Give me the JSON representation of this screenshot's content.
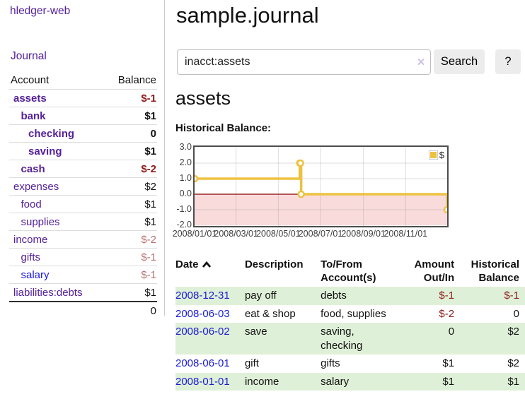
{
  "app": {
    "title": "hledger-web"
  },
  "sidebar": {
    "journal_link": "Journal",
    "table_headers": {
      "account": "Account",
      "balance": "Balance"
    },
    "accounts": [
      {
        "name": "assets",
        "balance": "$-1",
        "level": 0,
        "bold": true,
        "name_color": "purple",
        "balance_color": "neg-strong"
      },
      {
        "name": "bank",
        "balance": "$1",
        "level": 1,
        "bold": true,
        "name_color": "purple",
        "balance_color": "pos"
      },
      {
        "name": "checking",
        "balance": "0",
        "level": 2,
        "bold": true,
        "name_color": "purple",
        "balance_color": "pos"
      },
      {
        "name": "saving",
        "balance": "$1",
        "level": 2,
        "bold": true,
        "name_color": "purple",
        "balance_color": "pos"
      },
      {
        "name": "cash",
        "balance": "$-2",
        "level": 1,
        "bold": true,
        "name_color": "purple",
        "balance_color": "neg-strong"
      },
      {
        "name": "expenses",
        "balance": "$2",
        "level": 0,
        "bold": false,
        "name_color": "purple",
        "balance_color": "pos"
      },
      {
        "name": "food",
        "balance": "$1",
        "level": 1,
        "bold": false,
        "name_color": "purple",
        "balance_color": "pos"
      },
      {
        "name": "supplies",
        "balance": "$1",
        "level": 1,
        "bold": false,
        "name_color": "purple",
        "balance_color": "pos"
      },
      {
        "name": "income",
        "balance": "$-2",
        "level": 0,
        "bold": false,
        "name_color": "purple",
        "balance_color": "neg-muted"
      },
      {
        "name": "gifts",
        "balance": "$-1",
        "level": 1,
        "bold": false,
        "name_color": "purple",
        "balance_color": "neg-muted"
      },
      {
        "name": "salary",
        "balance": "$-1",
        "level": 1,
        "bold": false,
        "name_color": "blue",
        "balance_color": "neg-muted"
      },
      {
        "name": "liabilities:debts",
        "balance": "$1",
        "level": 0,
        "bold": false,
        "name_color": "purple",
        "balance_color": "pos"
      }
    ],
    "total": "0"
  },
  "main": {
    "title": "sample.journal",
    "search": {
      "value": "inacct:assets",
      "clear_icon": "✕",
      "button": "Search",
      "help_button": "?"
    },
    "account_heading": "assets",
    "chart_label": "Historical Balance:"
  },
  "chart_data": {
    "type": "line",
    "title": "Historical Balance",
    "series": [
      {
        "name": "$",
        "color": "#edc240",
        "step": true,
        "points": [
          {
            "x": "2008/01/01",
            "y": 1
          },
          {
            "x": "2008/06/01",
            "y": 2
          },
          {
            "x": "2008/06/02",
            "y": 2
          },
          {
            "x": "2008/06/03",
            "y": 0
          },
          {
            "x": "2008/12/31",
            "y": -1
          }
        ]
      }
    ],
    "x_range": [
      "2008/01/01",
      "2008/12/31"
    ],
    "x_ticks": [
      "2008/01/01",
      "2008/03/01",
      "2008/05/01",
      "2008/07/01",
      "2008/09/01",
      "2008/11/01"
    ],
    "y_ticks": [
      3.0,
      2.0,
      1.0,
      0.0,
      -1.0,
      -2.0
    ],
    "ylim": [
      -2,
      3
    ],
    "legend": {
      "label": "$",
      "position": "top-right"
    },
    "grid_on": true,
    "grid_color": "rgba(135,135,135,0.28)",
    "zero_line_color": "#8b0000",
    "negative_region_color": "#f9dbdb",
    "border_color": "#4d4d4d"
  },
  "register": {
    "headers": {
      "date": "Date",
      "description": "Description",
      "to_from": "To/From Account(s)",
      "amount": "Amount Out/In",
      "balance": "Historical Balance"
    },
    "sort": {
      "column": "date",
      "direction": "asc"
    },
    "rows": [
      {
        "date": "2008-12-31",
        "description": "pay off",
        "to_from": "debts",
        "amount": "$-1",
        "amount_neg": true,
        "balance": "$-1",
        "balance_neg": true
      },
      {
        "date": "2008-06-03",
        "description": "eat & shop",
        "to_from": "food, supplies",
        "amount": "$-2",
        "amount_neg": true,
        "balance": "0",
        "balance_neg": false
      },
      {
        "date": "2008-06-02",
        "description": "save",
        "to_from": "saving,\nchecking",
        "amount": "0",
        "amount_neg": false,
        "balance": "$2",
        "balance_neg": false
      },
      {
        "date": "2008-06-01",
        "description": "gift",
        "to_from": "gifts",
        "amount": "$1",
        "amount_neg": false,
        "balance": "$2",
        "balance_neg": false
      },
      {
        "date": "2008-01-01",
        "description": "income",
        "to_from": "salary",
        "amount": "$1",
        "amount_neg": false,
        "balance": "$1",
        "balance_neg": false
      }
    ]
  },
  "colors": {
    "link_purple": "#55219b",
    "link_blue": "#1b1bd6",
    "negative_strong": "#8f1a1a",
    "negative_muted": "#bb7272",
    "row_stripe_green": "#dff0d8",
    "series_gold": "#edc240",
    "zero_line_red": "#8b0000",
    "negative_region_pink": "#f9dbdb"
  }
}
